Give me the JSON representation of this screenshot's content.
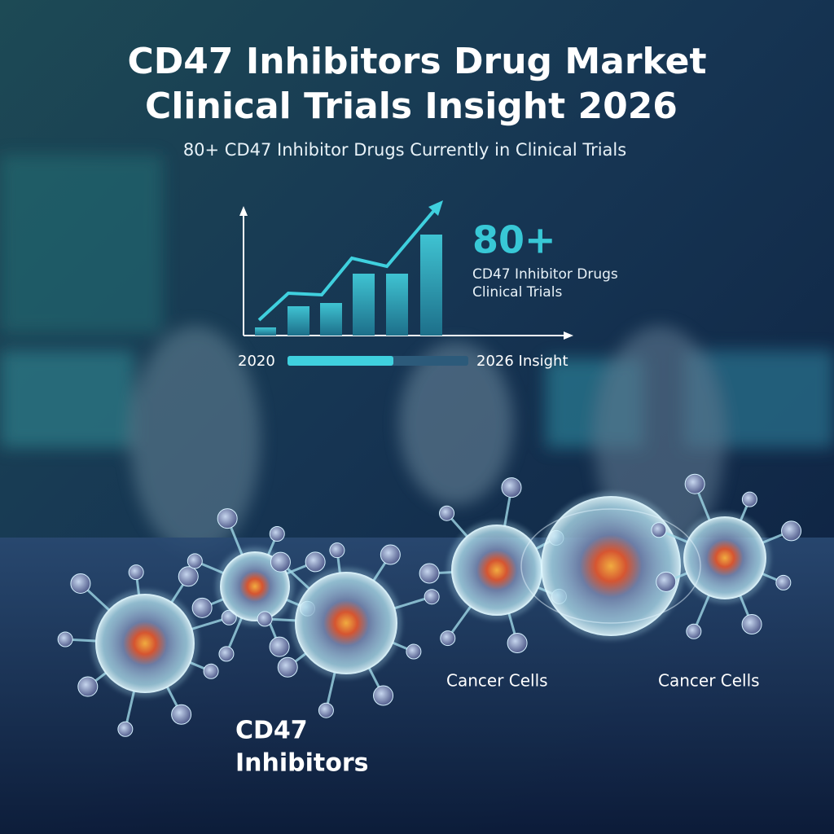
{
  "header": {
    "title_lines": [
      "CD47 Inhibitors Drug Market",
      "Clinical Trials Insight 2026"
    ],
    "subtitle": "80+ CD47 Inhibitor Drugs Currently in Clinical Trials"
  },
  "stat": {
    "value": "80+",
    "caption_lines": [
      "CD47 Inhibitor Drugs",
      "Clinical Trials"
    ]
  },
  "timeline": {
    "start": "2020",
    "end": "2026 Insight"
  },
  "labels": {
    "cancer_cells": [
      "Cancer Cells",
      "Cancer Cells"
    ],
    "inhibitors_lines": [
      "CD47",
      "Inhibitors"
    ]
  }
}
